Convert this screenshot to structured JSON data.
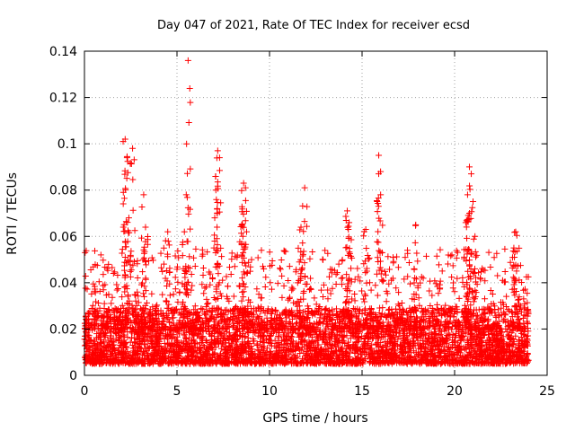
{
  "chart_data": {
    "type": "scatter",
    "title": "Day 047 of 2021, Rate Of TEC Index for receiver ecsd",
    "xlabel": "GPS time / hours",
    "ylabel": "ROTI / TECUs",
    "xlim": [
      0,
      25
    ],
    "ylim": [
      0,
      0.14
    ],
    "xticks": [
      0,
      5,
      10,
      15,
      20,
      25
    ],
    "yticks": [
      0,
      0.02,
      0.04,
      0.06,
      0.08,
      0.1,
      0.12,
      0.14
    ],
    "ytick_labels": [
      "0",
      "0.02",
      "0.04",
      "0.06",
      "0.08",
      "0.1",
      "0.12",
      "0.14"
    ],
    "xtick_labels": [
      "0",
      "5",
      "10",
      "15",
      "20",
      "25"
    ],
    "grid": true,
    "marker": "plus",
    "color": "#ff0000",
    "baseline_band": {
      "x_range": [
        0,
        24
      ],
      "typical_min": 0.005,
      "typical_max": 0.025
    },
    "peaks": [
      {
        "x": 2.2,
        "y": 0.102
      },
      {
        "x": 2.3,
        "y": 0.094
      },
      {
        "x": 2.1,
        "y": 0.079
      },
      {
        "x": 2.4,
        "y": 0.068
      },
      {
        "x": 2.6,
        "y": 0.098
      },
      {
        "x": 3.2,
        "y": 0.078
      },
      {
        "x": 3.3,
        "y": 0.064
      },
      {
        "x": 4.5,
        "y": 0.062
      },
      {
        "x": 5.6,
        "y": 0.136
      },
      {
        "x": 5.5,
        "y": 0.078
      },
      {
        "x": 5.4,
        "y": 0.062
      },
      {
        "x": 7.2,
        "y": 0.097
      },
      {
        "x": 7.3,
        "y": 0.094
      },
      {
        "x": 7.1,
        "y": 0.08
      },
      {
        "x": 8.6,
        "y": 0.083
      },
      {
        "x": 8.7,
        "y": 0.081
      },
      {
        "x": 8.5,
        "y": 0.065
      },
      {
        "x": 11.9,
        "y": 0.081
      },
      {
        "x": 11.7,
        "y": 0.064
      },
      {
        "x": 14.2,
        "y": 0.071
      },
      {
        "x": 14.3,
        "y": 0.066
      },
      {
        "x": 15.2,
        "y": 0.063
      },
      {
        "x": 15.9,
        "y": 0.095
      },
      {
        "x": 16.0,
        "y": 0.088
      },
      {
        "x": 17.9,
        "y": 0.065
      },
      {
        "x": 20.8,
        "y": 0.09
      },
      {
        "x": 20.9,
        "y": 0.087
      },
      {
        "x": 20.7,
        "y": 0.078
      },
      {
        "x": 20.6,
        "y": 0.066
      },
      {
        "x": 21.1,
        "y": 0.06
      },
      {
        "x": 23.3,
        "y": 0.062
      },
      {
        "x": 23.2,
        "y": 0.055
      }
    ]
  }
}
